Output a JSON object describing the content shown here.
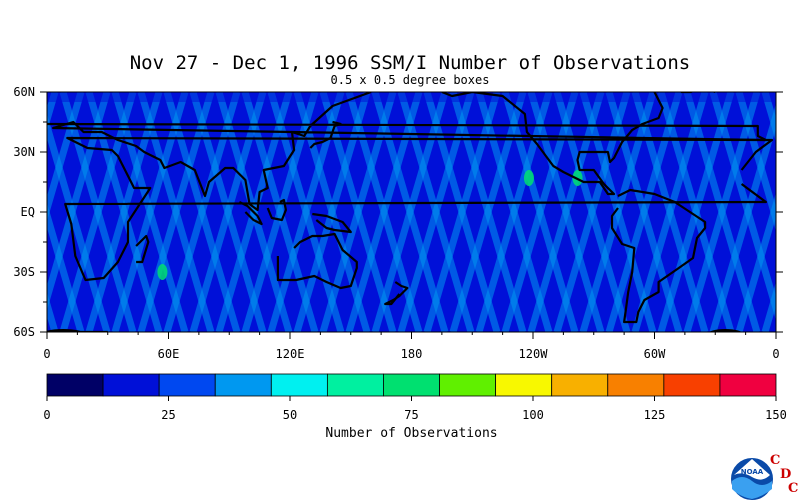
{
  "chart_data": [
    {
      "type": "heatmap",
      "title": "Nov 27 - Dec 1, 1996 SSM/I Number of Observations",
      "subtitle": "0.5 x 0.5 degree boxes",
      "x_tick_labels": [
        "0",
        "60E",
        "120E",
        "180",
        "120W",
        "60W",
        "0"
      ],
      "y_tick_labels": [
        "60N",
        "30N",
        "EQ",
        "30S",
        "60S"
      ],
      "xlim": [
        0,
        360
      ],
      "ylim": [
        -60,
        60
      ],
      "value_range": [
        0,
        150
      ],
      "typical_values": {
        "ocean_background": 20,
        "orbit_swath_overlap": 40,
        "max_hotspot": 75
      }
    },
    {
      "type": "bar",
      "role": "colorbar",
      "xlabel": "Number of Observations",
      "ticks": [
        "0",
        "25",
        "50",
        "75",
        "100",
        "125",
        "150"
      ],
      "bins": [
        0,
        12.5,
        25,
        37.5,
        50,
        62.5,
        75,
        87.5,
        100,
        112.5,
        125,
        137.5,
        150
      ],
      "colors": [
        "#000066",
        "#0010d8",
        "#0048f0",
        "#0098f0",
        "#00f0f0",
        "#00f0a0",
        "#00e070",
        "#60f000",
        "#f8f800",
        "#f8b000",
        "#f88000",
        "#f84000",
        "#f00040"
      ]
    }
  ],
  "logo": {
    "name": "NOAA",
    "letters": [
      "C",
      "D",
      "C"
    ]
  }
}
